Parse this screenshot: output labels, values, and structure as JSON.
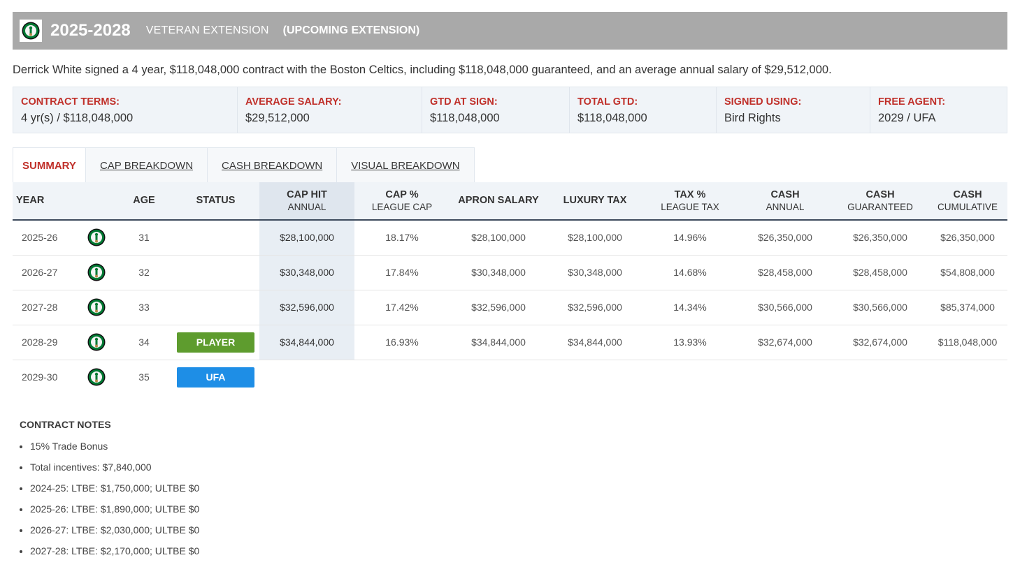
{
  "header": {
    "years": "2025-2028",
    "type": "VETERAN EXTENSION",
    "status": "(UPCOMING EXTENSION)",
    "logo_icon": "celtics-logo-icon"
  },
  "summary": "Derrick White signed a 4 year, $118,048,000 contract with the Boston Celtics, including $118,048,000 guaranteed, and an average annual salary of $29,512,000.",
  "terms": [
    {
      "label": "CONTRACT TERMS:",
      "value": "4 yr(s) / $118,048,000"
    },
    {
      "label": "AVERAGE SALARY:",
      "value": "$29,512,000"
    },
    {
      "label": "GTD AT SIGN:",
      "value": "$118,048,000"
    },
    {
      "label": "TOTAL GTD:",
      "value": "$118,048,000"
    },
    {
      "label": "SIGNED USING:",
      "value": "Bird Rights"
    },
    {
      "label": "FREE AGENT:",
      "value": "2029 / UFA"
    }
  ],
  "tabs": [
    {
      "label": "SUMMARY",
      "active": true
    },
    {
      "label": "CAP BREAKDOWN",
      "active": false
    },
    {
      "label": "CASH BREAKDOWN",
      "active": false
    },
    {
      "label": "VISUAL BREAKDOWN",
      "active": false
    }
  ],
  "columns": {
    "year": "YEAR",
    "age": "AGE",
    "status": "STATUS",
    "cap_hit": {
      "main": "CAP HIT",
      "sub": "ANNUAL"
    },
    "cap_pct": {
      "main": "CAP %",
      "sub": "LEAGUE CAP"
    },
    "apron": "APRON SALARY",
    "luxury": "LUXURY TAX",
    "tax_pct": {
      "main": "TAX %",
      "sub": "LEAGUE TAX"
    },
    "cash_annual": {
      "main": "CASH",
      "sub": "ANNUAL"
    },
    "cash_gtd": {
      "main": "CASH",
      "sub": "GUARANTEED"
    },
    "cash_cum": {
      "main": "CASH",
      "sub": "CUMULATIVE"
    }
  },
  "rows": [
    {
      "year": "2025-26",
      "age": "31",
      "status": "",
      "cap_hit": "$28,100,000",
      "cap_pct": "18.17%",
      "apron": "$28,100,000",
      "luxury": "$28,100,000",
      "tax_pct": "14.96%",
      "cash_annual": "$26,350,000",
      "cash_gtd": "$26,350,000",
      "cash_cum": "$26,350,000"
    },
    {
      "year": "2026-27",
      "age": "32",
      "status": "",
      "cap_hit": "$30,348,000",
      "cap_pct": "17.84%",
      "apron": "$30,348,000",
      "luxury": "$30,348,000",
      "tax_pct": "14.68%",
      "cash_annual": "$28,458,000",
      "cash_gtd": "$28,458,000",
      "cash_cum": "$54,808,000"
    },
    {
      "year": "2027-28",
      "age": "33",
      "status": "",
      "cap_hit": "$32,596,000",
      "cap_pct": "17.42%",
      "apron": "$32,596,000",
      "luxury": "$32,596,000",
      "tax_pct": "14.34%",
      "cash_annual": "$30,566,000",
      "cash_gtd": "$30,566,000",
      "cash_cum": "$85,374,000"
    },
    {
      "year": "2028-29",
      "age": "34",
      "status": "PLAYER",
      "cap_hit": "$34,844,000",
      "cap_pct": "16.93%",
      "apron": "$34,844,000",
      "luxury": "$34,844,000",
      "tax_pct": "13.93%",
      "cash_annual": "$32,674,000",
      "cash_gtd": "$32,674,000",
      "cash_cum": "$118,048,000"
    },
    {
      "year": "2029-30",
      "age": "35",
      "status": "UFA"
    }
  ],
  "notes": {
    "title": "CONTRACT NOTES",
    "items": [
      "15% Trade Bonus",
      "Total incentives: $7,840,000",
      "2024-25: LTBE: $1,750,000; ULTBE $0",
      "2025-26: LTBE: $1,890,000; ULTBE $0",
      "2026-27: LTBE: $2,030,000; ULTBE $0",
      "2027-28: LTBE: $2,170,000; ULTBE $0"
    ]
  },
  "colors": {
    "header_bg": "#a9a9a9",
    "label_red": "#c0302a",
    "player_badge": "#5e9c2e",
    "ufa_badge": "#1e8ee6"
  }
}
